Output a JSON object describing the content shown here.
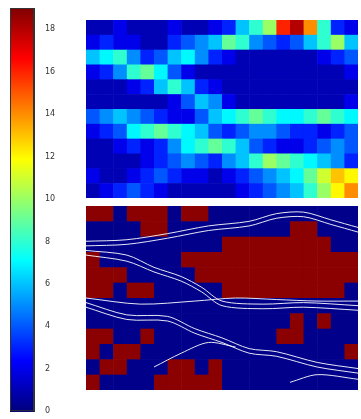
{
  "chart_data": [
    {
      "type": "heatmap",
      "tick_labels": false,
      "cells": [
        [
          1,
          1,
          2,
          1,
          1,
          1,
          2,
          1,
          1,
          2,
          3,
          6,
          8,
          10,
          16,
          18,
          14,
          8,
          3,
          2
        ],
        [
          2,
          3,
          2,
          2,
          1,
          1,
          3,
          4,
          5,
          6,
          9,
          8,
          5,
          4,
          3,
          4,
          6,
          8,
          10,
          6
        ],
        [
          6,
          7,
          8,
          5,
          3,
          4,
          6,
          7,
          5,
          3,
          2,
          1,
          1,
          1,
          1,
          1,
          1,
          2,
          3,
          4
        ],
        [
          2,
          3,
          5,
          8,
          9,
          7,
          4,
          2,
          1,
          1,
          1,
          1,
          1,
          1,
          1,
          1,
          1,
          1,
          1,
          2
        ],
        [
          1,
          1,
          1,
          2,
          3,
          6,
          8,
          6,
          3,
          2,
          1,
          1,
          1,
          1,
          1,
          1,
          1,
          1,
          1,
          1
        ],
        [
          1,
          1,
          1,
          1,
          1,
          1,
          2,
          4,
          6,
          5,
          2,
          1,
          1,
          1,
          1,
          1,
          1,
          1,
          1,
          2
        ],
        [
          4,
          5,
          6,
          5,
          4,
          3,
          2,
          2,
          4,
          6,
          7,
          8,
          9,
          8,
          7,
          7,
          8,
          9,
          8,
          7
        ],
        [
          2,
          3,
          4,
          7,
          8,
          9,
          8,
          7,
          6,
          4,
          3,
          4,
          5,
          5,
          4,
          3,
          3,
          2,
          3,
          4
        ],
        [
          1,
          1,
          2,
          3,
          2,
          3,
          5,
          7,
          8,
          9,
          8,
          6,
          4,
          3,
          2,
          2,
          3,
          4,
          5,
          4
        ],
        [
          1,
          1,
          1,
          1,
          2,
          3,
          4,
          5,
          4,
          3,
          5,
          6,
          8,
          10,
          9,
          8,
          7,
          6,
          5,
          3
        ],
        [
          2,
          1,
          1,
          2,
          3,
          4,
          3,
          2,
          2,
          1,
          2,
          3,
          4,
          5,
          6,
          7,
          9,
          11,
          13,
          12
        ],
        [
          1,
          2,
          3,
          4,
          3,
          2,
          1,
          1,
          1,
          1,
          1,
          2,
          3,
          4,
          5,
          6,
          8,
          10,
          12,
          14
        ]
      ],
      "colorbar": {
        "range": [
          0,
          19
        ],
        "ticks": [
          0,
          2,
          4,
          6,
          8,
          10,
          12,
          14,
          16,
          18
        ]
      }
    },
    {
      "type": "heatmap",
      "tick_labels": false,
      "colors": [
        "#00008b",
        "#8b0000"
      ],
      "cells": [
        [
          1,
          1,
          0,
          1,
          1,
          1,
          0,
          1,
          1,
          0,
          0,
          0,
          0,
          0,
          0,
          0,
          0,
          0,
          0,
          0
        ],
        [
          0,
          0,
          0,
          0,
          1,
          1,
          0,
          0,
          0,
          0,
          0,
          0,
          0,
          0,
          0,
          1,
          1,
          0,
          0,
          0
        ],
        [
          0,
          0,
          0,
          0,
          0,
          0,
          0,
          0,
          0,
          0,
          1,
          1,
          1,
          1,
          1,
          1,
          1,
          1,
          0,
          0
        ],
        [
          1,
          0,
          0,
          0,
          0,
          0,
          0,
          1,
          1,
          1,
          1,
          1,
          1,
          1,
          1,
          1,
          1,
          1,
          1,
          1
        ],
        [
          1,
          1,
          1,
          0,
          0,
          0,
          0,
          0,
          1,
          1,
          1,
          1,
          1,
          1,
          1,
          1,
          1,
          1,
          1,
          1
        ],
        [
          1,
          1,
          0,
          1,
          1,
          0,
          0,
          0,
          0,
          0,
          1,
          1,
          1,
          1,
          1,
          1,
          1,
          1,
          1,
          0
        ],
        [
          0,
          0,
          0,
          0,
          0,
          0,
          0,
          0,
          0,
          0,
          0,
          0,
          0,
          0,
          0,
          0,
          0,
          0,
          0,
          0
        ],
        [
          0,
          0,
          0,
          0,
          0,
          0,
          0,
          0,
          0,
          0,
          0,
          0,
          0,
          0,
          0,
          1,
          0,
          1,
          0,
          0
        ],
        [
          1,
          1,
          0,
          0,
          1,
          0,
          0,
          0,
          0,
          0,
          0,
          0,
          0,
          0,
          1,
          1,
          0,
          0,
          0,
          0
        ],
        [
          1,
          0,
          1,
          1,
          0,
          0,
          0,
          0,
          0,
          0,
          0,
          0,
          0,
          0,
          0,
          0,
          0,
          0,
          0,
          1
        ],
        [
          0,
          1,
          1,
          0,
          0,
          0,
          1,
          1,
          0,
          1,
          0,
          0,
          0,
          0,
          0,
          0,
          0,
          0,
          0,
          0
        ],
        [
          1,
          0,
          0,
          0,
          0,
          1,
          1,
          1,
          1,
          1,
          0,
          0,
          0,
          0,
          0,
          0,
          0,
          0,
          0,
          0
        ]
      ],
      "streamlines": [
        [
          [
            0,
            2.3
          ],
          [
            3,
            2.2
          ],
          [
            6,
            1.8
          ],
          [
            9,
            1.3
          ],
          [
            12,
            1.0
          ],
          [
            14,
            0.5
          ],
          [
            16,
            0.4
          ],
          [
            18,
            0.9
          ],
          [
            20,
            1.4
          ]
        ],
        [
          [
            0,
            2.6
          ],
          [
            3,
            2.5
          ],
          [
            6,
            2.1
          ],
          [
            9,
            1.6
          ],
          [
            12,
            1.3
          ],
          [
            14,
            0.8
          ],
          [
            16,
            0.7
          ],
          [
            18,
            1.2
          ],
          [
            20,
            1.7
          ]
        ],
        [
          [
            0,
            2.9
          ],
          [
            3,
            3.2
          ],
          [
            5,
            4.0
          ],
          [
            7,
            4.6
          ],
          [
            8.5,
            5.3
          ],
          [
            10,
            6.2
          ],
          [
            13,
            6.4
          ],
          [
            16,
            6.3
          ],
          [
            20,
            6.5
          ]
        ],
        [
          [
            0,
            3.2
          ],
          [
            3,
            3.6
          ],
          [
            5,
            4.3
          ],
          [
            7,
            4.9
          ],
          [
            8.5,
            5.6
          ],
          [
            10,
            6.5
          ],
          [
            13,
            6.7
          ],
          [
            16,
            6.6
          ],
          [
            20,
            6.8
          ]
        ],
        [
          [
            0,
            6.3
          ],
          [
            3,
            7.1
          ],
          [
            6,
            7.2
          ],
          [
            8,
            8.0
          ],
          [
            10,
            8.6
          ],
          [
            12,
            9.3
          ],
          [
            14,
            9.5
          ],
          [
            17,
            10.2
          ],
          [
            20,
            10.6
          ]
        ],
        [
          [
            0,
            6.6
          ],
          [
            3,
            7.4
          ],
          [
            6,
            7.5
          ],
          [
            8,
            8.3
          ],
          [
            10,
            8.9
          ],
          [
            12,
            9.6
          ],
          [
            14,
            9.8
          ],
          [
            17,
            10.5
          ],
          [
            20,
            10.9
          ]
        ],
        [
          [
            0,
            6.0
          ],
          [
            4,
            6.4
          ],
          [
            8,
            6.2
          ],
          [
            11,
            6.0
          ],
          [
            14,
            6.1
          ],
          [
            17,
            6.2
          ],
          [
            20,
            6.2
          ]
        ],
        [
          [
            5,
            10.5
          ],
          [
            7,
            9.6
          ],
          [
            9,
            8.9
          ],
          [
            11,
            9.2
          ]
        ],
        [
          [
            15,
            11.5
          ],
          [
            17,
            11.0
          ],
          [
            20,
            11.3
          ]
        ]
      ]
    }
  ]
}
